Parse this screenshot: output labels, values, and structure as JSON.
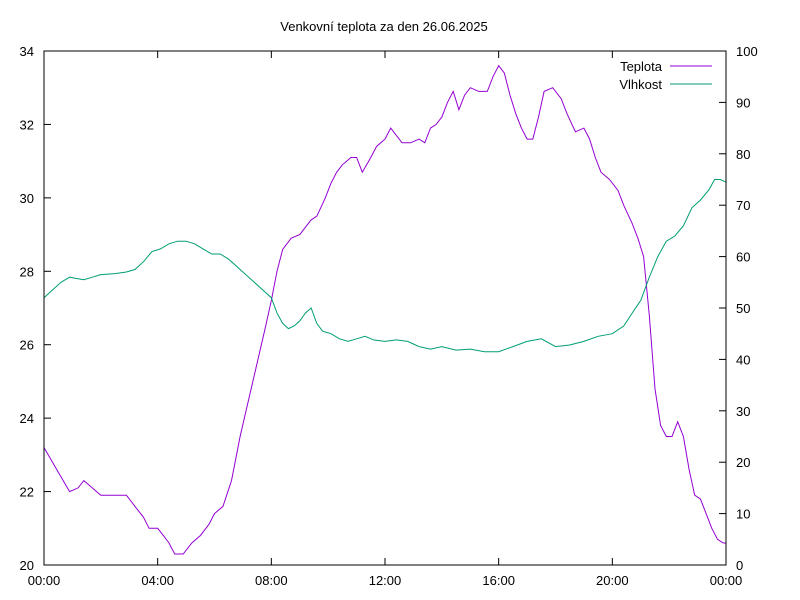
{
  "chart_data": {
    "type": "line",
    "title": "Venkovní teplota za den 26.06.2025",
    "xlabel": "",
    "ylabel": "",
    "y2label": "",
    "xlim": [
      0,
      24
    ],
    "ylim": [
      20,
      34
    ],
    "y2lim": [
      0,
      100
    ],
    "x_ticks": [
      "00:00",
      "04:00",
      "08:00",
      "12:00",
      "16:00",
      "20:00",
      "00:00"
    ],
    "y_ticks": [
      20,
      22,
      24,
      26,
      28,
      30,
      32,
      34
    ],
    "y2_ticks": [
      0,
      10,
      20,
      30,
      40,
      50,
      60,
      70,
      80,
      90,
      100
    ],
    "grid": false,
    "legend_position": "top-right",
    "series": [
      {
        "name": "Teplota",
        "axis": "left",
        "color": "#9400d3",
        "points": [
          [
            0.0,
            23.2
          ],
          [
            0.3,
            22.8
          ],
          [
            0.6,
            22.4
          ],
          [
            0.9,
            22.0
          ],
          [
            1.2,
            22.1
          ],
          [
            1.4,
            22.3
          ],
          [
            1.7,
            22.1
          ],
          [
            2.0,
            21.9
          ],
          [
            2.5,
            21.9
          ],
          [
            2.9,
            21.9
          ],
          [
            3.2,
            21.6
          ],
          [
            3.5,
            21.3
          ],
          [
            3.7,
            21.0
          ],
          [
            4.0,
            21.0
          ],
          [
            4.2,
            20.8
          ],
          [
            4.4,
            20.6
          ],
          [
            4.6,
            20.3
          ],
          [
            4.9,
            20.3
          ],
          [
            5.2,
            20.6
          ],
          [
            5.5,
            20.8
          ],
          [
            5.8,
            21.1
          ],
          [
            6.0,
            21.4
          ],
          [
            6.3,
            21.6
          ],
          [
            6.6,
            22.3
          ],
          [
            6.9,
            23.5
          ],
          [
            7.2,
            24.5
          ],
          [
            7.5,
            25.5
          ],
          [
            7.8,
            26.5
          ],
          [
            8.0,
            27.2
          ],
          [
            8.2,
            28.0
          ],
          [
            8.4,
            28.6
          ],
          [
            8.7,
            28.9
          ],
          [
            9.0,
            29.0
          ],
          [
            9.2,
            29.2
          ],
          [
            9.4,
            29.4
          ],
          [
            9.6,
            29.5
          ],
          [
            9.9,
            30.0
          ],
          [
            10.1,
            30.4
          ],
          [
            10.3,
            30.7
          ],
          [
            10.5,
            30.9
          ],
          [
            10.8,
            31.1
          ],
          [
            11.0,
            31.1
          ],
          [
            11.2,
            30.7
          ],
          [
            11.5,
            31.1
          ],
          [
            11.7,
            31.4
          ],
          [
            12.0,
            31.6
          ],
          [
            12.2,
            31.9
          ],
          [
            12.4,
            31.7
          ],
          [
            12.6,
            31.5
          ],
          [
            12.9,
            31.5
          ],
          [
            13.2,
            31.6
          ],
          [
            13.4,
            31.5
          ],
          [
            13.6,
            31.9
          ],
          [
            13.8,
            32.0
          ],
          [
            14.0,
            32.2
          ],
          [
            14.2,
            32.6
          ],
          [
            14.4,
            32.9
          ],
          [
            14.6,
            32.4
          ],
          [
            14.8,
            32.8
          ],
          [
            15.0,
            33.0
          ],
          [
            15.3,
            32.9
          ],
          [
            15.6,
            32.9
          ],
          [
            15.8,
            33.3
          ],
          [
            16.0,
            33.6
          ],
          [
            16.2,
            33.4
          ],
          [
            16.4,
            32.8
          ],
          [
            16.6,
            32.3
          ],
          [
            16.8,
            31.9
          ],
          [
            17.0,
            31.6
          ],
          [
            17.2,
            31.6
          ],
          [
            17.4,
            32.2
          ],
          [
            17.6,
            32.9
          ],
          [
            17.9,
            33.0
          ],
          [
            18.2,
            32.7
          ],
          [
            18.4,
            32.3
          ],
          [
            18.7,
            31.8
          ],
          [
            19.0,
            31.9
          ],
          [
            19.2,
            31.6
          ],
          [
            19.4,
            31.1
          ],
          [
            19.6,
            30.7
          ],
          [
            19.9,
            30.5
          ],
          [
            20.2,
            30.2
          ],
          [
            20.4,
            29.8
          ],
          [
            20.7,
            29.3
          ],
          [
            20.9,
            28.9
          ],
          [
            21.1,
            28.4
          ],
          [
            21.3,
            26.8
          ],
          [
            21.5,
            24.8
          ],
          [
            21.7,
            23.8
          ],
          [
            21.9,
            23.5
          ],
          [
            22.1,
            23.5
          ],
          [
            22.3,
            23.9
          ],
          [
            22.5,
            23.5
          ],
          [
            22.7,
            22.6
          ],
          [
            22.9,
            21.9
          ],
          [
            23.1,
            21.8
          ],
          [
            23.3,
            21.4
          ],
          [
            23.5,
            21.0
          ],
          [
            23.7,
            20.7
          ],
          [
            23.9,
            20.6
          ],
          [
            24.0,
            20.6
          ]
        ]
      },
      {
        "name": "Vlhkost",
        "axis": "right",
        "color": "#009e73",
        "points": [
          [
            0.0,
            52
          ],
          [
            0.3,
            53.5
          ],
          [
            0.6,
            55
          ],
          [
            0.9,
            56
          ],
          [
            1.2,
            55.7
          ],
          [
            1.4,
            55.5
          ],
          [
            1.7,
            56
          ],
          [
            2.0,
            56.5
          ],
          [
            2.5,
            56.7
          ],
          [
            2.9,
            57
          ],
          [
            3.2,
            57.5
          ],
          [
            3.5,
            59
          ],
          [
            3.8,
            61
          ],
          [
            4.1,
            61.5
          ],
          [
            4.4,
            62.5
          ],
          [
            4.7,
            63
          ],
          [
            5.0,
            63
          ],
          [
            5.3,
            62.5
          ],
          [
            5.6,
            61.5
          ],
          [
            5.9,
            60.5
          ],
          [
            6.2,
            60.5
          ],
          [
            6.5,
            59.5
          ],
          [
            6.8,
            58
          ],
          [
            7.1,
            56.5
          ],
          [
            7.4,
            55
          ],
          [
            7.7,
            53.5
          ],
          [
            8.0,
            52
          ],
          [
            8.2,
            49
          ],
          [
            8.4,
            47
          ],
          [
            8.6,
            46
          ],
          [
            8.8,
            46.5
          ],
          [
            9.0,
            47.5
          ],
          [
            9.2,
            49
          ],
          [
            9.4,
            50
          ],
          [
            9.6,
            47
          ],
          [
            9.8,
            45.5
          ],
          [
            10.1,
            45
          ],
          [
            10.4,
            44
          ],
          [
            10.7,
            43.5
          ],
          [
            11.0,
            44
          ],
          [
            11.3,
            44.5
          ],
          [
            11.6,
            43.8
          ],
          [
            12.0,
            43.5
          ],
          [
            12.4,
            43.8
          ],
          [
            12.8,
            43.5
          ],
          [
            13.2,
            42.5
          ],
          [
            13.6,
            42
          ],
          [
            14.0,
            42.5
          ],
          [
            14.5,
            41.8
          ],
          [
            15.0,
            42
          ],
          [
            15.5,
            41.5
          ],
          [
            16.0,
            41.5
          ],
          [
            16.5,
            42.5
          ],
          [
            17.0,
            43.5
          ],
          [
            17.5,
            44
          ],
          [
            18.0,
            42.5
          ],
          [
            18.5,
            42.8
          ],
          [
            19.0,
            43.5
          ],
          [
            19.5,
            44.5
          ],
          [
            20.0,
            45
          ],
          [
            20.4,
            46.5
          ],
          [
            20.7,
            49
          ],
          [
            21.0,
            51.5
          ],
          [
            21.3,
            56
          ],
          [
            21.6,
            60
          ],
          [
            21.9,
            63
          ],
          [
            22.2,
            64
          ],
          [
            22.5,
            66
          ],
          [
            22.8,
            69.5
          ],
          [
            23.1,
            71
          ],
          [
            23.4,
            73
          ],
          [
            23.6,
            75
          ],
          [
            23.8,
            75
          ],
          [
            24.0,
            74.5
          ]
        ]
      }
    ]
  }
}
